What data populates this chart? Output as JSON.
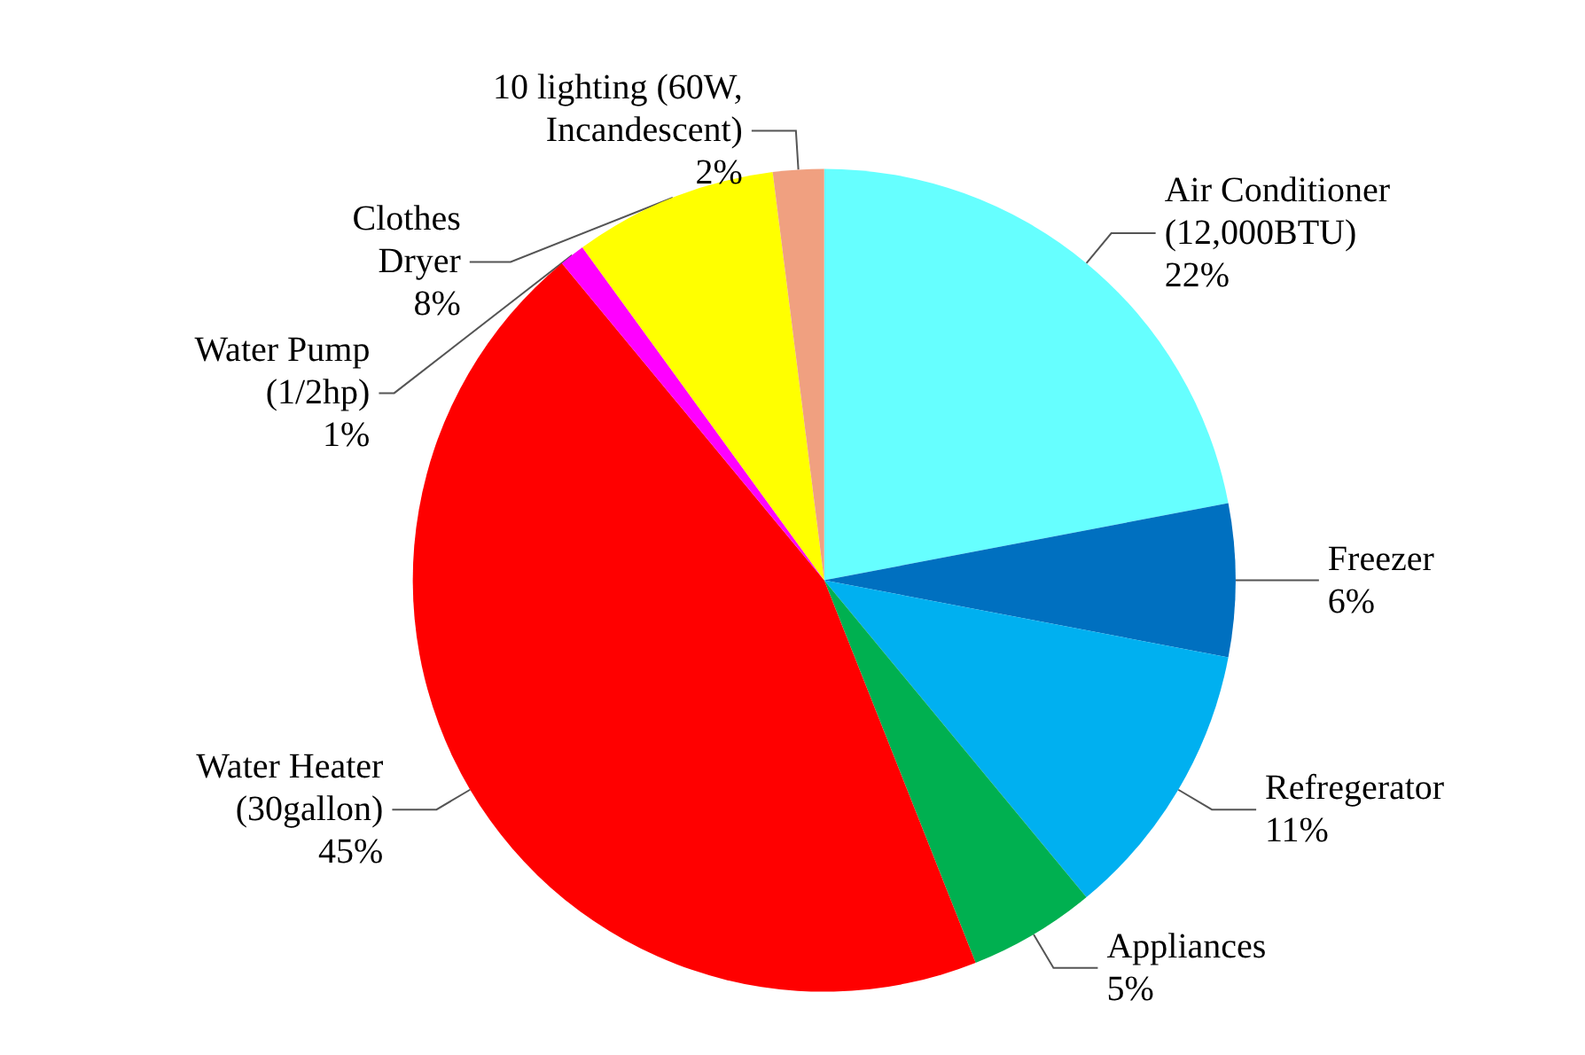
{
  "chart_data": {
    "type": "pie",
    "categories": [
      "Air Conditioner\n(12,000BTU)",
      "Freezer",
      "Refregerator",
      "Appliances",
      "Water Heater\n(30gallon)",
      "Water Pump\n(1/2hp)",
      "Clothes\nDryer",
      "10 lighting (60W,\nIncandescent)"
    ],
    "values": [
      22,
      6,
      11,
      5,
      45,
      1,
      8,
      2
    ],
    "value_labels": [
      "22%",
      "6%",
      "11%",
      "5%",
      "45%",
      "1%",
      "8%",
      "2%"
    ],
    "colors": [
      "#66ffff",
      "#0070c0",
      "#00b0f0",
      "#00b050",
      "#ff0000",
      "#ff00ff",
      "#ffff00",
      "#f0a080"
    ],
    "legend": false
  }
}
